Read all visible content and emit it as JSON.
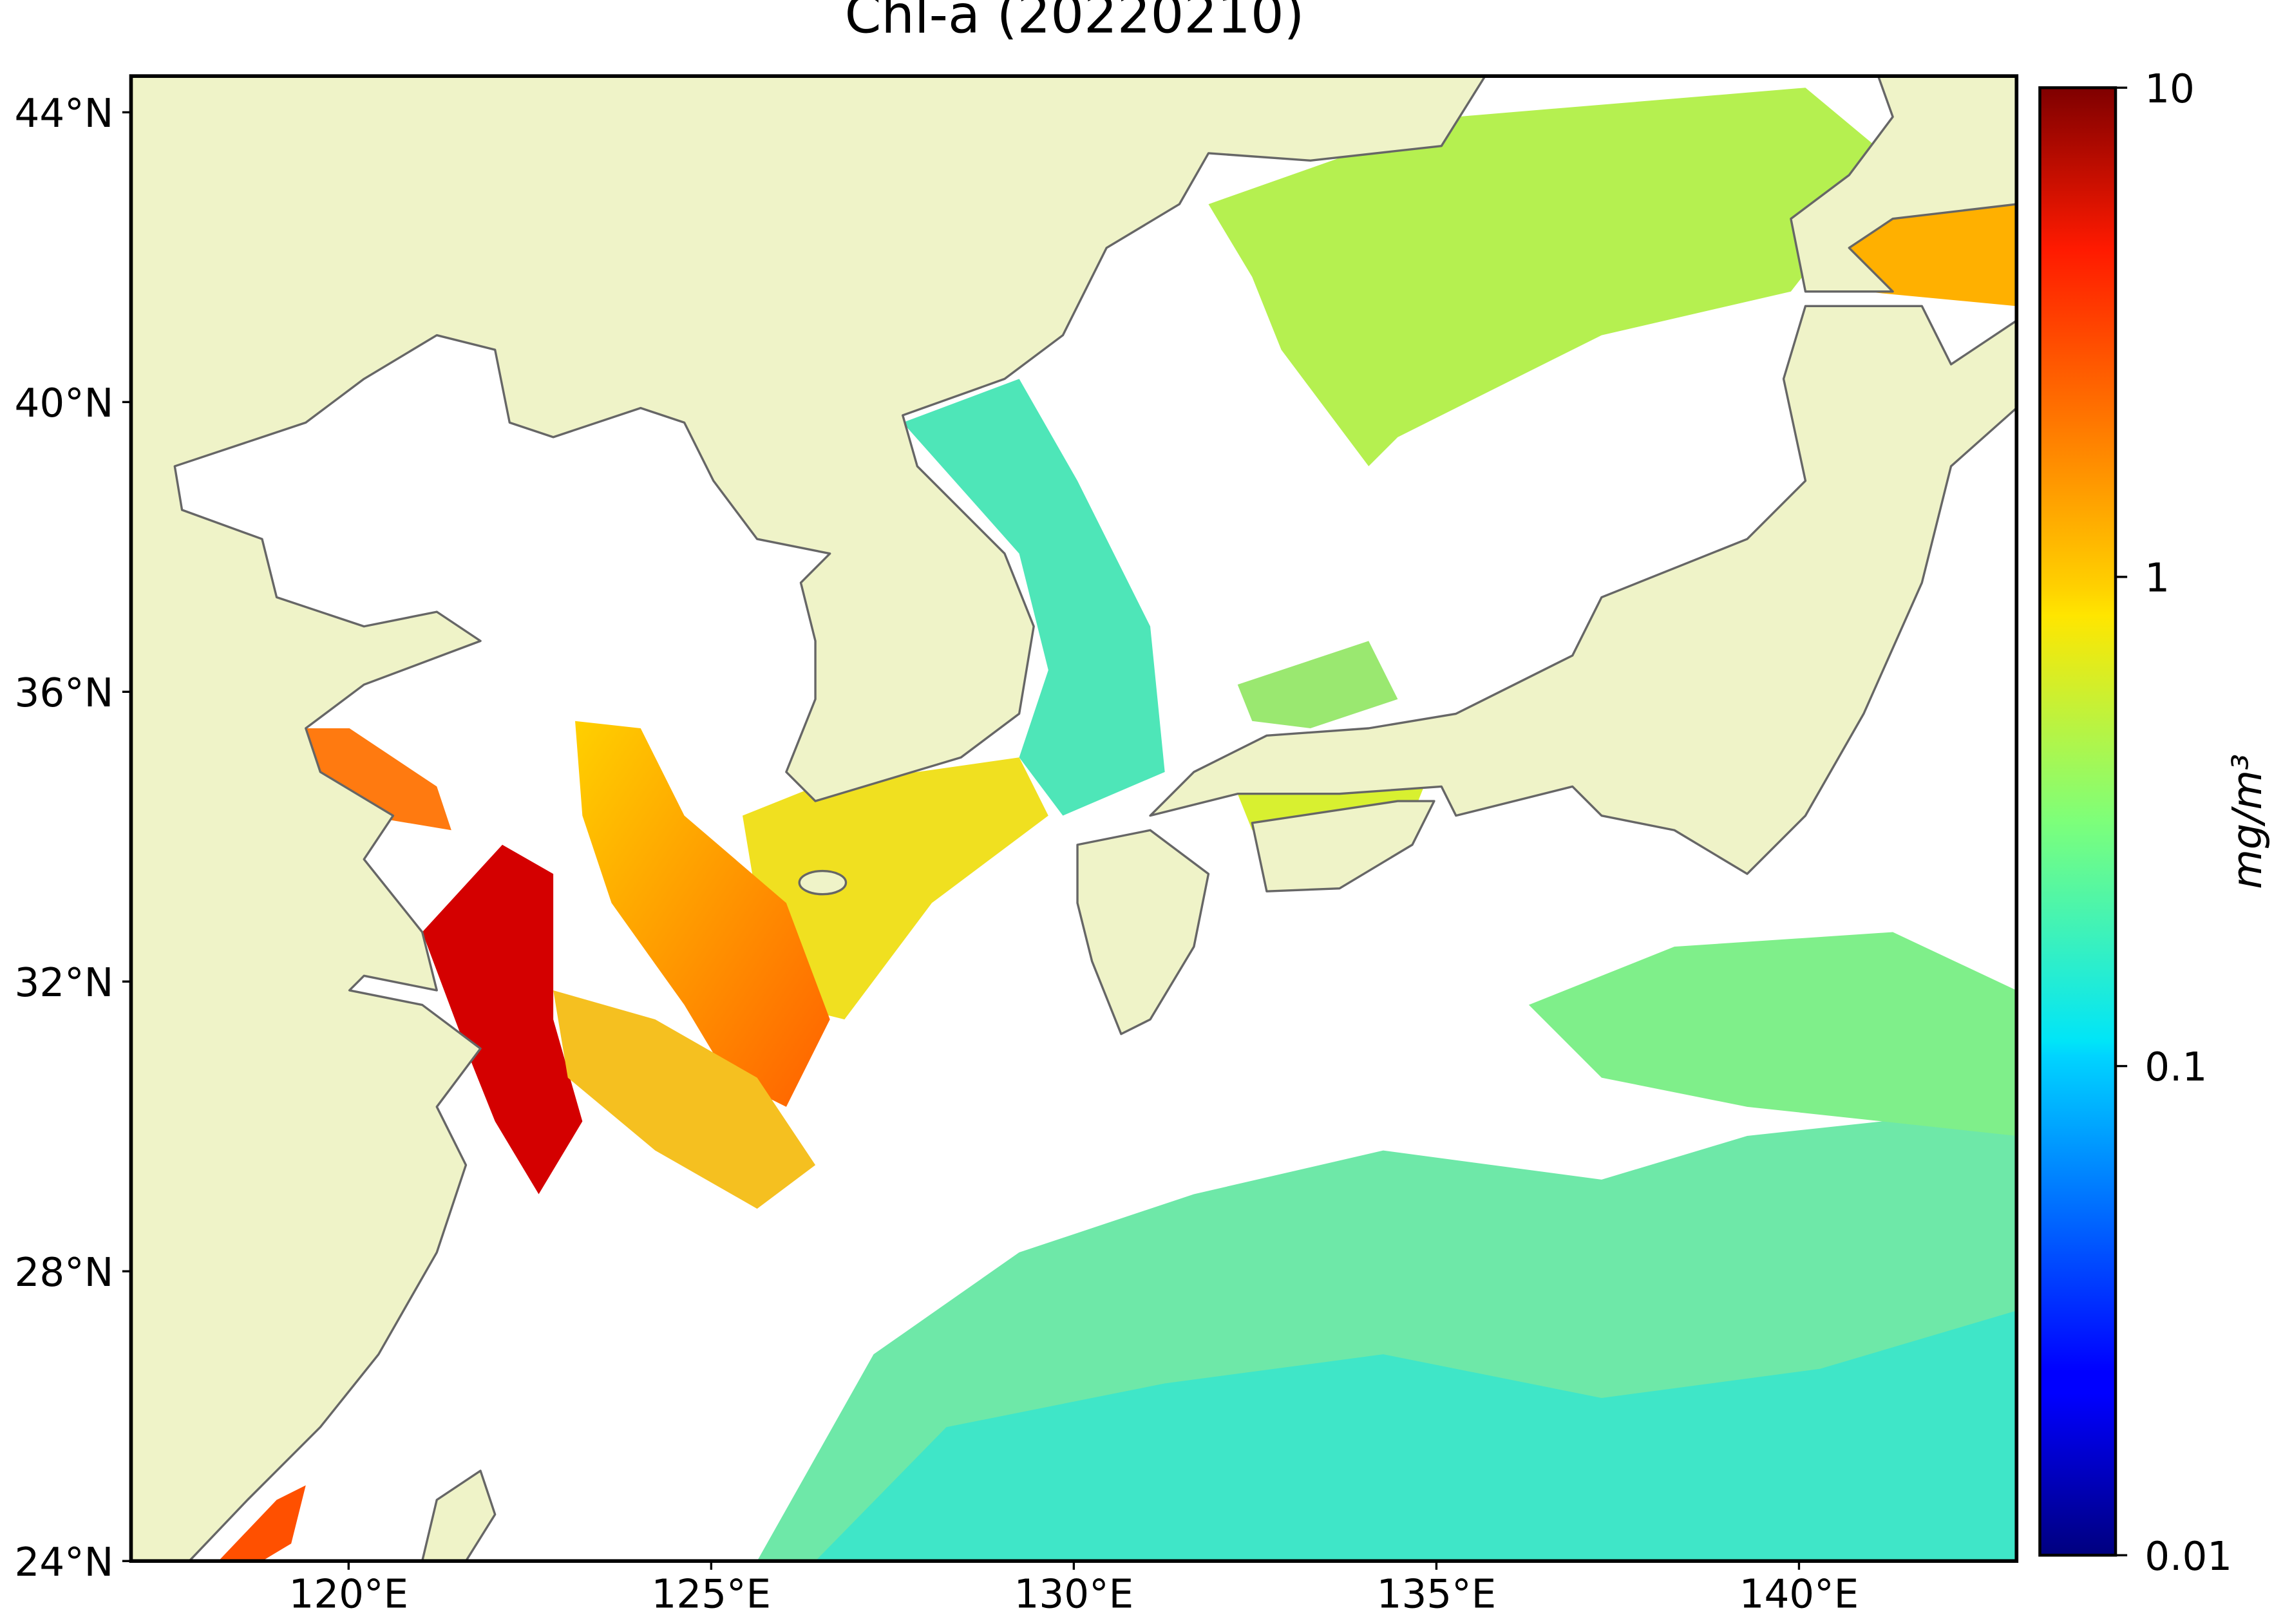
{
  "chart_data": {
    "type": "map",
    "title": "Chl-a (20220210)",
    "xlim": [
      117,
      143
    ],
    "ylim": [
      24,
      44.5
    ],
    "xticks": [
      {
        "value": 120,
        "label": "120°E"
      },
      {
        "value": 125,
        "label": "125°E"
      },
      {
        "value": 130,
        "label": "130°E"
      },
      {
        "value": 135,
        "label": "135°E"
      },
      {
        "value": 140,
        "label": "140°E"
      }
    ],
    "yticks": [
      {
        "value": 24,
        "label": "24°N"
      },
      {
        "value": 28,
        "label": "28°N"
      },
      {
        "value": 32,
        "label": "32°N"
      },
      {
        "value": 36,
        "label": "36°N"
      },
      {
        "value": 40,
        "label": "40°N"
      },
      {
        "value": 44,
        "label": "44°N"
      }
    ],
    "colorbar": {
      "label": "mg/m³",
      "scale": "log",
      "colormap": "jet",
      "lim": [
        0.01,
        10
      ],
      "ticks": [
        0.01,
        0.1,
        1,
        10
      ]
    }
  }
}
